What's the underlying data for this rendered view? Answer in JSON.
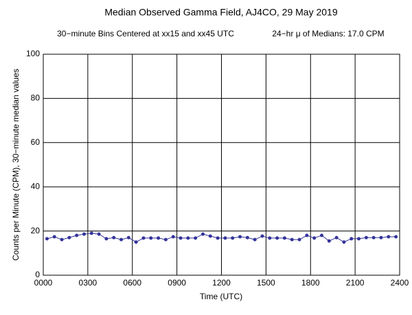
{
  "chart_data": {
    "type": "line",
    "title": "Median Observed Gamma Field, AJ4CO, 29 May 2019",
    "subtitle": "30−minute Bins Centered at xx15 and xx45 UTC",
    "annotation": "24−hr μ of Medians: 17.0 CPM",
    "x_label": "Time (UTC)",
    "y_label": "Counts per Minute (CPM), 30−minute median values",
    "x": [
      0.25,
      0.75,
      1.25,
      1.75,
      2.25,
      2.75,
      3.25,
      3.75,
      4.25,
      4.75,
      5.25,
      5.75,
      6.25,
      6.75,
      7.25,
      7.75,
      8.25,
      8.75,
      9.25,
      9.75,
      10.25,
      10.75,
      11.25,
      11.75,
      12.25,
      12.75,
      13.25,
      13.75,
      14.25,
      14.75,
      15.25,
      15.75,
      16.25,
      16.75,
      17.25,
      17.75,
      18.25,
      18.75,
      19.25,
      19.75,
      20.25,
      20.75,
      21.25,
      21.75,
      22.25,
      22.75,
      23.25,
      23.75
    ],
    "series": [
      {
        "name": "Median CPM",
        "color": "#33339a",
        "values": [
          16.5,
          17.4,
          16.1,
          17,
          18,
          18.6,
          19,
          18.6,
          16.5,
          17,
          16.1,
          17,
          15,
          16.8,
          16.8,
          16.8,
          16.1,
          17.4,
          16.8,
          16.8,
          16.8,
          18.6,
          17.7,
          16.8,
          16.8,
          16.8,
          17.4,
          17,
          16.1,
          17.7,
          16.8,
          16.8,
          16.8,
          16.1,
          16.1,
          18,
          16.8,
          18,
          15.5,
          17,
          15,
          16.5,
          16.5,
          17,
          17,
          17,
          17.4,
          17.4
        ]
      }
    ],
    "xlim": [
      0,
      24
    ],
    "xticks": [
      {
        "value": 0,
        "label": "0000"
      },
      {
        "value": 3,
        "label": "0300"
      },
      {
        "value": 6,
        "label": "0600"
      },
      {
        "value": 9,
        "label": "0900"
      },
      {
        "value": 12,
        "label": "1200"
      },
      {
        "value": 15,
        "label": "1500"
      },
      {
        "value": 18,
        "label": "1800"
      },
      {
        "value": 21,
        "label": "2100"
      },
      {
        "value": 24,
        "label": "2400"
      }
    ],
    "ylim": [
      0,
      100
    ],
    "yticks": [
      0,
      20,
      40,
      60,
      80,
      100
    ],
    "grid": true
  }
}
